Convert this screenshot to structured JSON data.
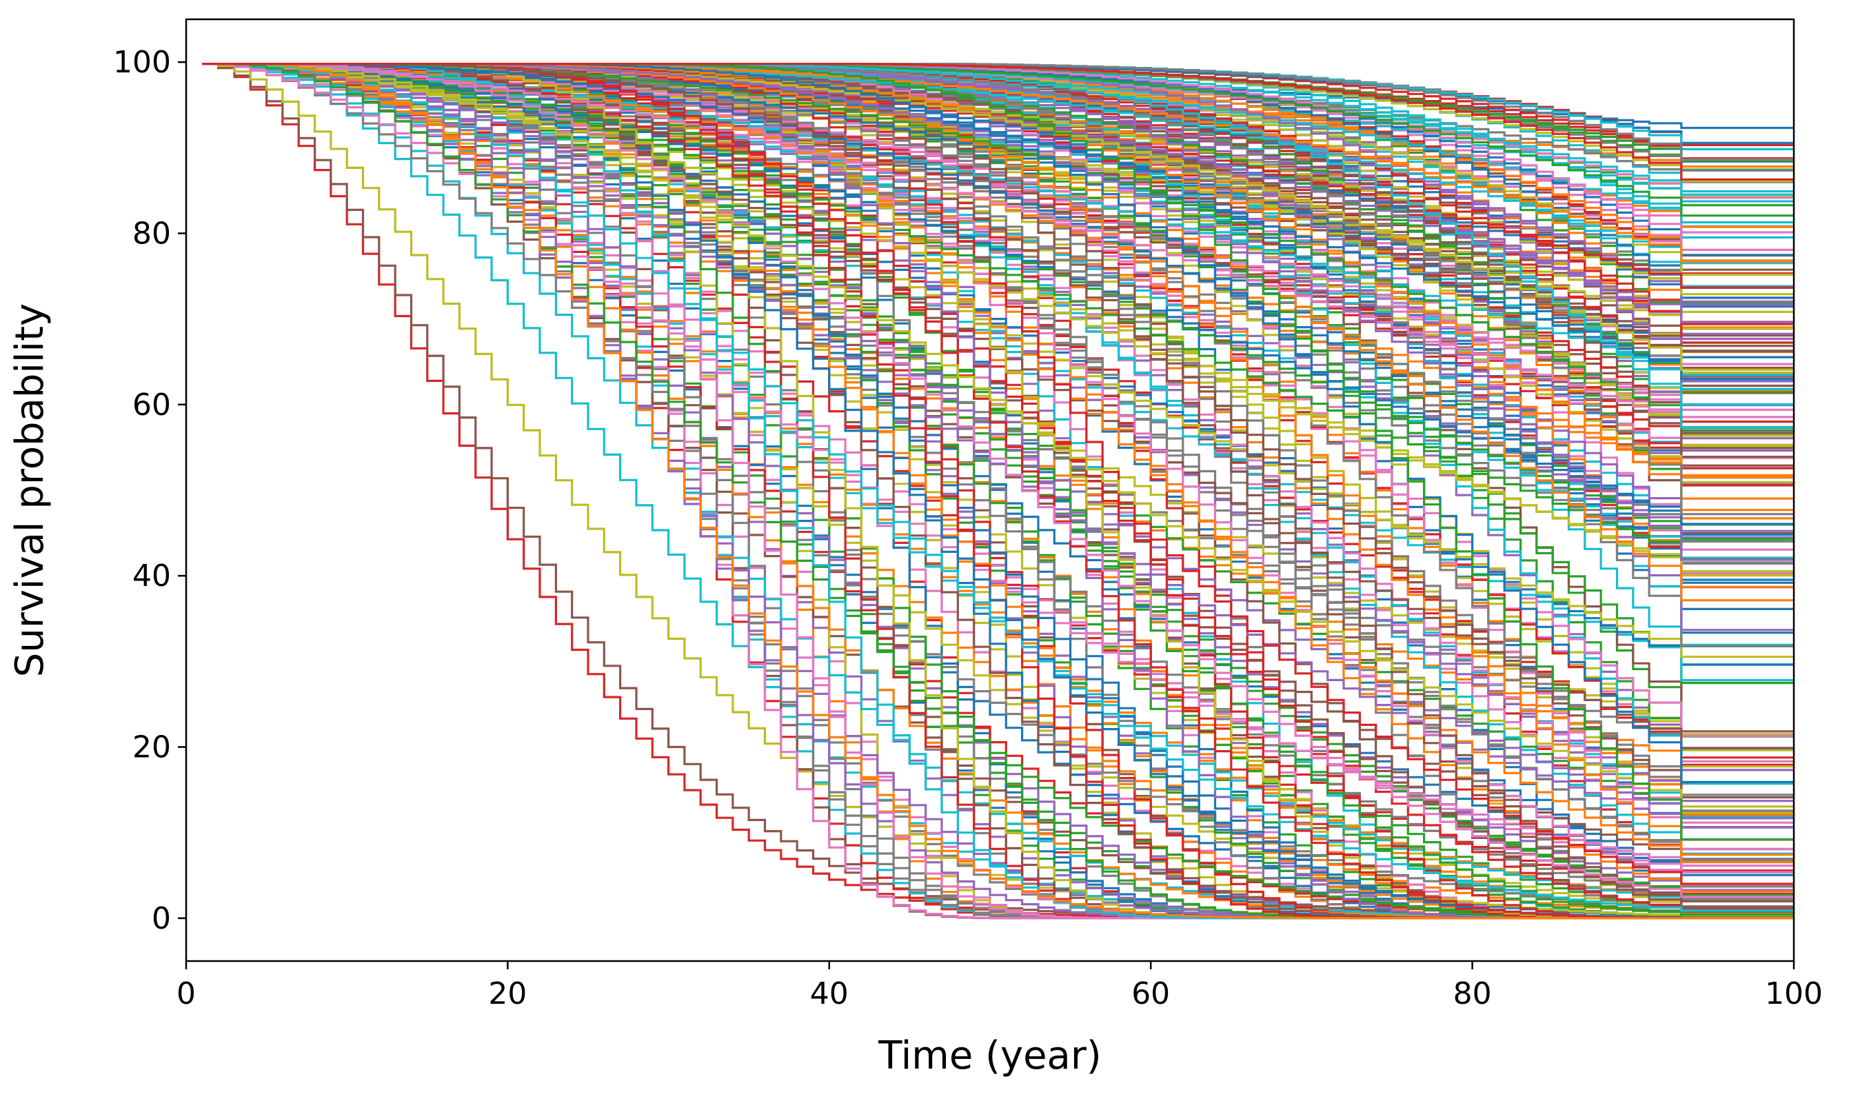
{
  "chart_data": {
    "type": "line",
    "step": true,
    "title": "",
    "xlabel": "Time (year)",
    "ylabel": "Survival probability",
    "xlim": [
      0,
      100
    ],
    "ylim": [
      -5,
      105
    ],
    "xticks": [
      0,
      20,
      40,
      60,
      80,
      100
    ],
    "yticks": [
      0,
      20,
      40,
      60,
      80,
      100
    ],
    "grid": false,
    "legend": "none",
    "palette": [
      "#1f77b4",
      "#ff7f0e",
      "#2ca02c",
      "#d62728",
      "#9467bd",
      "#8c564b",
      "#e377c2",
      "#7f7f7f",
      "#bcbd22",
      "#17becf"
    ],
    "series_params": {
      "description_free": true,
      "count": 300,
      "x_start": 1,
      "x_end": 100,
      "step_size": 1,
      "y_start": 99.8,
      "form": "Weibull-type step curves; median crossing between ~18 and ~140 years; shapes between ~1.7 and ~6; curves tail off at steps near x=90 and x=93"
    },
    "series": [
      {
        "values_anchor": "leftmost_red",
        "median": 18,
        "shape": 1.9,
        "color": "#d62728"
      },
      {
        "values_anchor": "leftmost_brown",
        "median": 19,
        "shape": 1.9,
        "color": "#8c564b"
      },
      {
        "values_anchor": "olive",
        "median": 23,
        "shape": 1.9,
        "color": "#bcbd22"
      },
      {
        "values_anchor": "cyan",
        "median": 27,
        "shape": 2.3,
        "color": "#17becf"
      },
      {
        "values_anchor": "top_orange",
        "median": 200,
        "shape": 2.2,
        "color": "#ff7f0e"
      },
      {
        "values_anchor": "top_blue",
        "median": 230,
        "shape": 2.4,
        "color": "#1f77b4"
      }
    ]
  }
}
